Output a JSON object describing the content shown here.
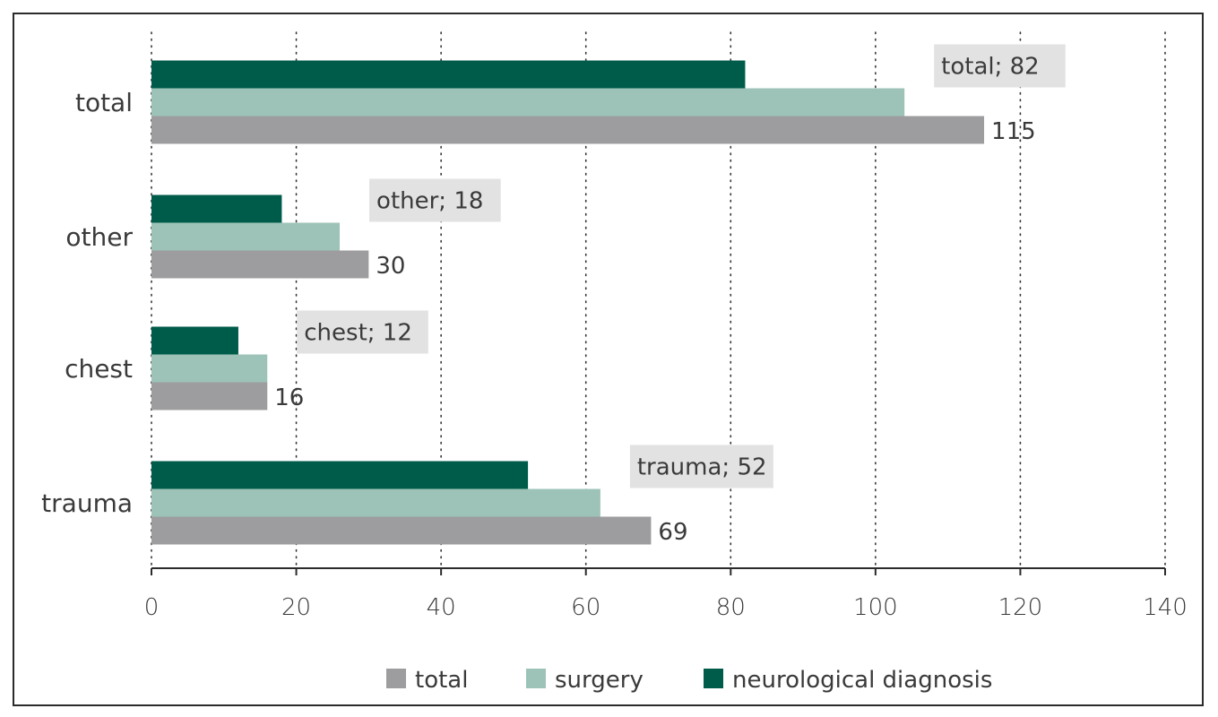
{
  "chart_data": {
    "type": "bar",
    "orientation": "horizontal",
    "categories": [
      "trauma",
      "chest",
      "other",
      "total"
    ],
    "series": [
      {
        "name": "total",
        "values": [
          69,
          16,
          30,
          115
        ],
        "color": "#9d9d9f"
      },
      {
        "name": "surgery",
        "values": [
          62,
          16,
          26,
          104
        ],
        "color": "#9dc3b8"
      },
      {
        "name": "neurological diagnosis",
        "values": [
          52,
          12,
          18,
          82
        ],
        "color": "#005c4a"
      }
    ],
    "data_labels": [
      {
        "category": "trauma",
        "text": "69"
      },
      {
        "category": "chest",
        "text": "16"
      },
      {
        "category": "other",
        "text": "30"
      },
      {
        "category": "total",
        "text": "115"
      }
    ],
    "callouts": [
      {
        "category": "trauma",
        "text": "trauma; 52"
      },
      {
        "category": "chest",
        "text": "chest; 12"
      },
      {
        "category": "other",
        "text": "other; 18"
      },
      {
        "category": "total",
        "text": "total; 82"
      }
    ],
    "x_ticks": [
      "0",
      "20",
      "40",
      "60",
      "80",
      "100",
      "120",
      "140"
    ],
    "xlim": [
      0,
      140
    ],
    "grid": "vertical dotted",
    "legend_position": "bottom",
    "title": "",
    "xlabel": "",
    "ylabel": ""
  }
}
